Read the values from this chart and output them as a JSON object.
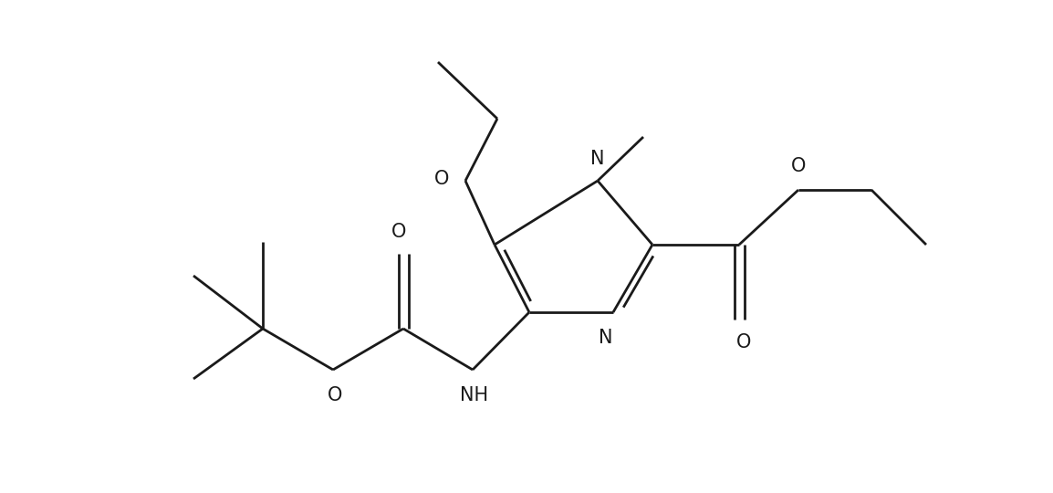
{
  "bg_color": "#ffffff",
  "line_color": "#1a1a1a",
  "line_width": 2.0,
  "font_size": 15,
  "figsize": [
    11.54,
    5.4
  ],
  "dpi": 100,
  "xlim": [
    0.0,
    11.54
  ],
  "ylim": [
    0.0,
    5.4
  ]
}
